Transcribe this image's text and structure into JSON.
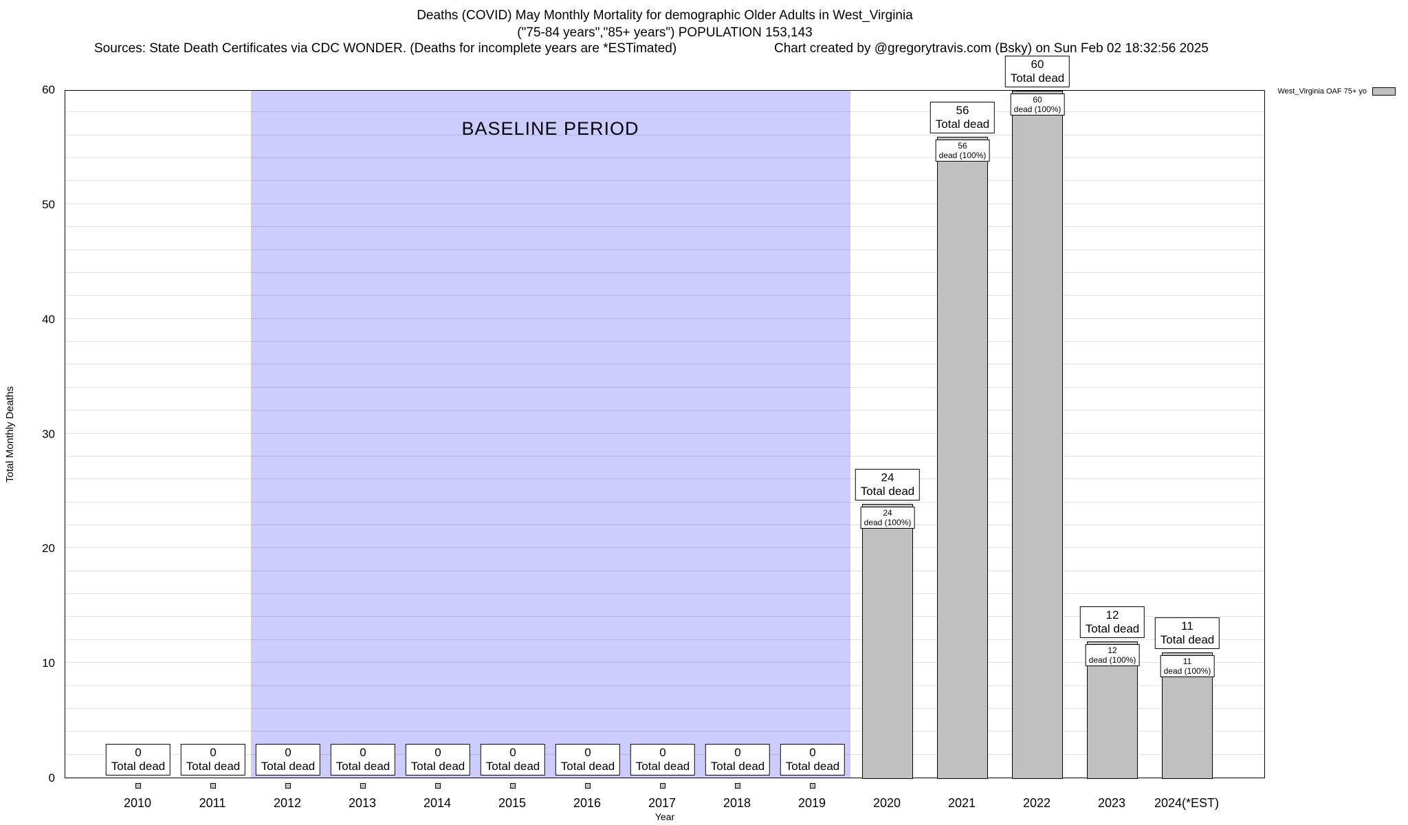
{
  "header": {
    "sources": "Sources: State Death Certificates via CDC WONDER. (Deaths for incomplete years are *ESTimated)",
    "credit": "Chart created by @gregorytravis.com (Bsky) on Sun Feb 02 18:32:56 2025"
  },
  "legend": {
    "label": "West_Virginia OAF 75+ yo",
    "swatch_color": "#c0c0c0"
  },
  "chart_data": {
    "type": "bar",
    "title": "Deaths (COVID) May Monthly Mortality for demographic Older Adults in West_Virginia",
    "subtitle": "(\"75-84 years\",\"85+ years\") POPULATION 153,143",
    "xlabel": "Year",
    "ylabel": "Total Monthly Deaths",
    "ylim": [
      0,
      60
    ],
    "y_ticks": [
      0,
      10,
      20,
      30,
      40,
      50,
      60
    ],
    "minor_grid_step": 2,
    "grid": true,
    "legend_position": "top-right",
    "bar_color": "#c0c0c0",
    "categories": [
      "2010",
      "2011",
      "2012",
      "2013",
      "2014",
      "2015",
      "2016",
      "2017",
      "2018",
      "2019",
      "2020",
      "2021",
      "2022",
      "2023",
      "2024(*EST)"
    ],
    "values": [
      0,
      0,
      0,
      0,
      0,
      0,
      0,
      0,
      0,
      0,
      24,
      56,
      60,
      12,
      11
    ],
    "series_name": "West_Virginia OAF 75+ yo",
    "label_template_total": "Total dead",
    "label_template_pct": "dead (100%)",
    "baseline_period": {
      "label": "BASELINE PERIOD",
      "start_category": "2012",
      "end_category": "2019",
      "color": "#ccccff"
    }
  }
}
